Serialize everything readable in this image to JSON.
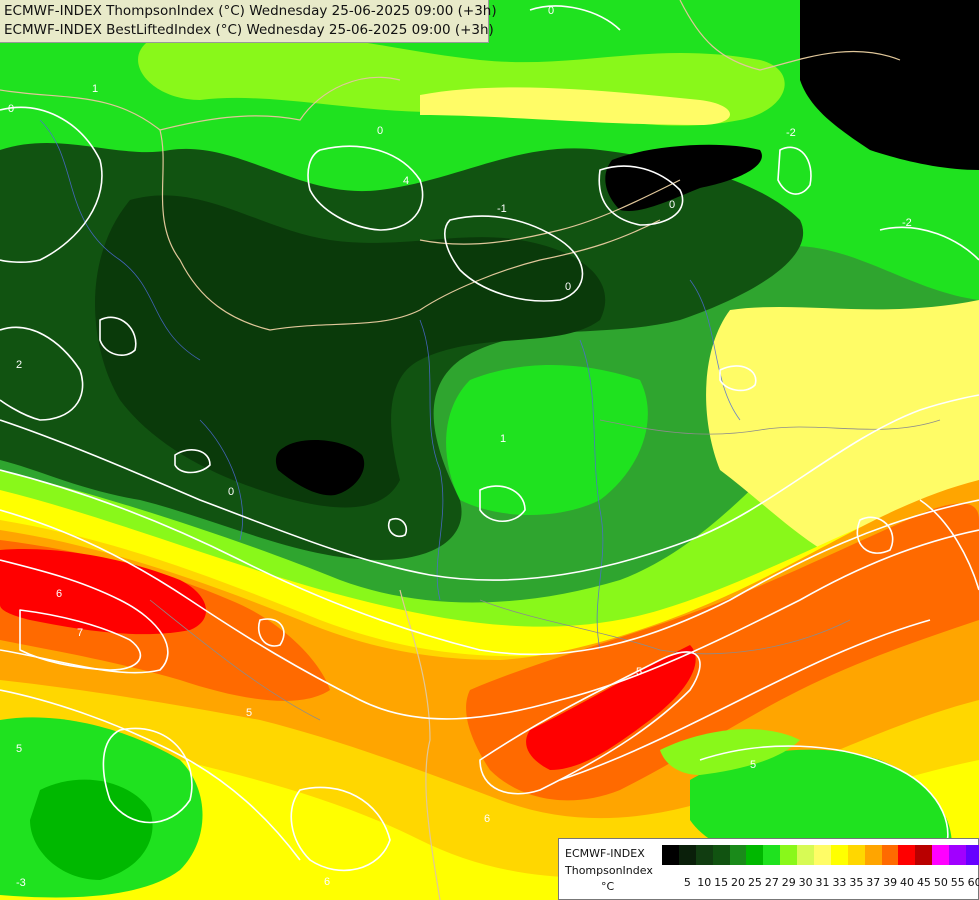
{
  "header": {
    "line1": "ECMWF-INDEX ThompsonIndex (°C) Wednesday 25-06-2025 09:00 (+3h)",
    "line2": "ECMWF-INDEX BestLiftedIndex (°C) Wednesday 25-06-2025 09:00 (+3h)"
  },
  "legend": {
    "model": "ECMWF-INDEX",
    "parameter": "ThompsonIndex",
    "unit": "°C",
    "classes": [
      {
        "color": "#000000"
      },
      {
        "color": "#0a1f0a"
      },
      {
        "color": "#113d11"
      },
      {
        "color": "#115311"
      },
      {
        "color": "#1a8a1a"
      },
      {
        "color": "#00b800"
      },
      {
        "color": "#1fe21f"
      },
      {
        "color": "#89f81a"
      },
      {
        "color": "#d7fa55"
      },
      {
        "color": "#fffc66"
      },
      {
        "color": "#ffff00"
      },
      {
        "color": "#ffd700"
      },
      {
        "color": "#ffa500"
      },
      {
        "color": "#ff6a00"
      },
      {
        "color": "#ff0000"
      },
      {
        "color": "#b90000"
      },
      {
        "color": "#ff00ff"
      },
      {
        "color": "#a100ff"
      },
      {
        "color": "#6600ff"
      },
      {
        "color": "#0000ff"
      }
    ],
    "tick_labels": [
      "5",
      "10",
      "15",
      "20",
      "25",
      "27",
      "29",
      "30",
      "31",
      "33",
      "35",
      "37",
      "39",
      "40",
      "45",
      "50",
      "55",
      "60"
    ]
  },
  "contour_labels": [
    "0",
    "1",
    "2",
    "4",
    "5",
    "6",
    "7",
    "-1",
    "-2",
    "-3"
  ]
}
